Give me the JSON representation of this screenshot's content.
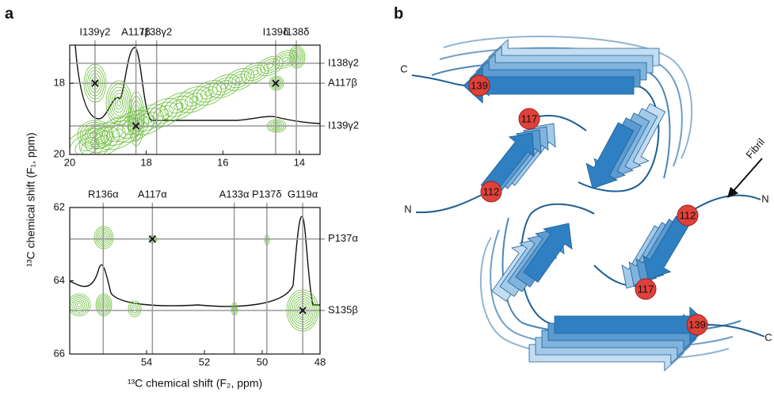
{
  "panel_labels": [
    "a",
    "b"
  ],
  "ylabel": "¹³C chemical shift (F₁, ppm)",
  "chart_data": [
    {
      "type": "scatter",
      "xlim": [
        20,
        13.46
      ],
      "ylim": [
        20,
        16.93
      ],
      "xticks": [
        20,
        18,
        16,
        14
      ],
      "yticks": [
        18,
        20
      ],
      "x": [
        19.34,
        18.27,
        14.62
      ],
      "values": [
        18.0,
        19.2,
        18.0
      ],
      "x_markers": [
        {
          "label": "I139γ2",
          "value": 19.34
        },
        {
          "label": "A117β",
          "value": 18.27
        },
        {
          "label": "I138γ2",
          "value": 17.73
        },
        {
          "label": "I139δ",
          "value": 14.62
        },
        {
          "label": "I138δ",
          "value": 14.08
        }
      ],
      "y_markers": [
        {
          "label": "I138γ2",
          "value": 17.44
        },
        {
          "label": "A117β",
          "value": 18.0
        },
        {
          "label": "I139γ2",
          "value": 19.2
        }
      ],
      "color": "#6cbf3a"
    },
    {
      "type": "scatter",
      "xlabel": "¹³C chemical shift (F₂, ppm)",
      "xlim": [
        56.66,
        48
      ],
      "ylim": [
        66,
        62
      ],
      "xticks": [
        54,
        52,
        50,
        48
      ],
      "yticks": [
        62,
        64,
        66
      ],
      "x": [
        53.8,
        48.6
      ],
      "values": [
        62.86,
        64.81
      ],
      "x_markers": [
        {
          "label": "R136α",
          "value": 55.5
        },
        {
          "label": "A117α",
          "value": 53.8
        },
        {
          "label": "A133α",
          "value": 50.97
        },
        {
          "label": "P137δ",
          "value": 49.84
        },
        {
          "label": "G119α",
          "value": 48.6
        }
      ],
      "y_markers": [
        {
          "label": "P137α",
          "value": 62.86
        },
        {
          "label": "S135β",
          "value": 64.81
        }
      ],
      "color": "#6cbf3a"
    }
  ],
  "diagram": {
    "termini": [
      "C",
      "N",
      "N",
      "C"
    ],
    "residues": [
      "139",
      "117",
      "112",
      "112",
      "117",
      "139"
    ],
    "arrow_label": "Fibril"
  }
}
